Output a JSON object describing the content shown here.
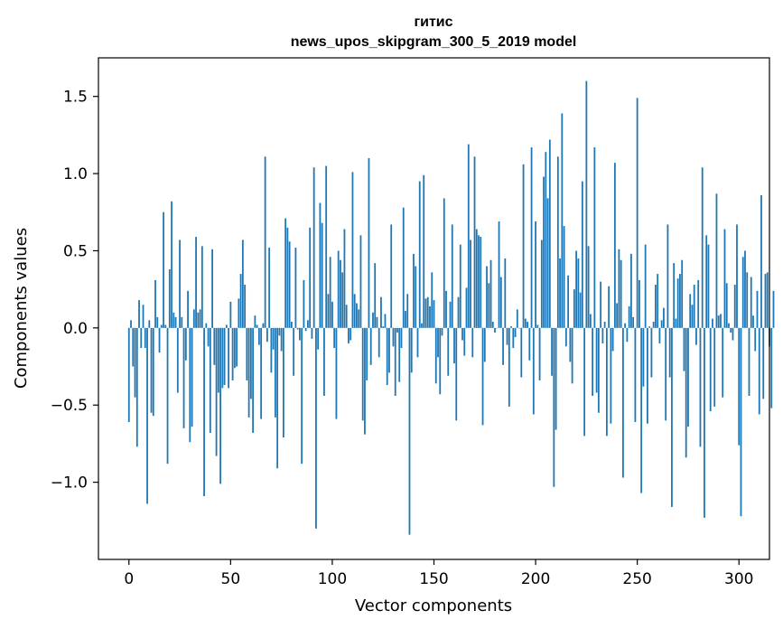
{
  "chart_data": {
    "type": "bar",
    "title": "гитис",
    "subtitle": "news_upos_skipgram_300_5_2019 model",
    "xlabel": "Vector components",
    "ylabel": "Components values",
    "xlim": [
      -15,
      315
    ],
    "ylim": [
      -1.5,
      1.75
    ],
    "xticks": [
      0,
      50,
      100,
      150,
      200,
      250,
      300
    ],
    "yticks": [
      -1.0,
      -0.5,
      0.0,
      0.5,
      1.0,
      1.5
    ],
    "xtick_labels": [
      "0",
      "50",
      "100",
      "150",
      "200",
      "250",
      "300"
    ],
    "ytick_labels": [
      "−1.0",
      "−0.5",
      "0.0",
      "0.5",
      "1.0",
      "1.5"
    ],
    "grid": false,
    "bar_color": "#1f77b4",
    "values": [
      -0.61,
      0.05,
      -0.25,
      -0.45,
      -0.77,
      0.18,
      -0.13,
      0.15,
      -0.13,
      -1.14,
      0.05,
      -0.55,
      -0.57,
      0.31,
      0.07,
      -0.16,
      0.02,
      0.75,
      0.02,
      -0.88,
      0.38,
      0.82,
      0.1,
      0.07,
      -0.42,
      0.57,
      0.07,
      -0.65,
      -0.21,
      0.24,
      -0.74,
      -0.64,
      0.12,
      0.59,
      0.1,
      0.12,
      0.53,
      -1.09,
      0.03,
      -0.12,
      -0.68,
      0.51,
      -0.24,
      -0.83,
      -0.42,
      -1.01,
      -0.39,
      -0.37,
      0.02,
      -0.39,
      0.17,
      -0.34,
      -0.26,
      -0.25,
      0.19,
      0.35,
      0.57,
      0.28,
      -0.34,
      -0.58,
      -0.46,
      -0.68,
      0.08,
      0.02,
      -0.11,
      -0.59,
      0.03,
      1.11,
      -0.09,
      0.52,
      -0.29,
      -0.14,
      -0.58,
      -0.91,
      -0.05,
      -0.15,
      -0.71,
      0.71,
      0.65,
      0.56,
      0.04,
      -0.31,
      0.52,
      -0.01,
      -0.08,
      -0.88,
      0.31,
      -0.02,
      0.05,
      0.65,
      -0.07,
      1.04,
      -1.3,
      -0.14,
      0.81,
      0.68,
      -0.44,
      1.05,
      0.22,
      0.46,
      0.17,
      -0.13,
      -0.59,
      0.5,
      0.44,
      0.36,
      0.64,
      0.15,
      -0.1,
      -0.08,
      1.01,
      0.22,
      0.16,
      0.12,
      0.6,
      -0.6,
      -0.69,
      -0.34,
      1.1,
      -0.24,
      0.1,
      0.42,
      0.07,
      -0.19,
      0.2,
      0.01,
      0.09,
      -0.37,
      -0.29,
      0.67,
      -0.12,
      -0.44,
      -0.03,
      -0.35,
      -0.13,
      0.78,
      0.11,
      0.22,
      -1.34,
      -0.29,
      0.48,
      0.4,
      -0.19,
      0.95,
      0.03,
      0.99,
      0.19,
      0.2,
      0.14,
      0.36,
      0.18,
      -0.36,
      -0.19,
      -0.43,
      -0.05,
      0.84,
      0.24,
      -0.31,
      0.17,
      0.67,
      -0.23,
      -0.6,
      0.2,
      0.54,
      -0.08,
      -0.18,
      0.26,
      1.19,
      0.57,
      -0.19,
      1.11,
      0.64,
      0.6,
      0.59,
      -0.63,
      -0.22,
      0.4,
      0.29,
      0.44,
      0.04,
      -0.03,
      0.0,
      0.69,
      0.33,
      -0.24,
      0.45,
      -0.11,
      -0.51,
      0.01,
      -0.13,
      -0.06,
      0.12,
      0.0,
      -0.32,
      1.06,
      0.06,
      0.04,
      -0.21,
      1.17,
      -0.56,
      0.69,
      0.02,
      -0.34,
      0.57,
      0.98,
      1.14,
      0.84,
      1.22,
      -0.31,
      -1.03,
      -0.66,
      1.11,
      0.45,
      1.39,
      0.66,
      -0.12,
      0.34,
      -0.22,
      -0.36,
      0.25,
      0.5,
      0.45,
      0.23,
      0.95,
      -0.7,
      1.6,
      0.53,
      0.09,
      -0.44,
      1.17,
      -0.42,
      -0.55,
      0.3,
      -0.1,
      0.04,
      -0.7,
      0.27,
      -0.62,
      -0.15,
      1.07,
      0.16,
      0.51,
      0.44,
      -0.97,
      0.03,
      -0.09,
      0.14,
      0.48,
      0.07,
      -0.61,
      1.49,
      0.31,
      -1.07,
      -0.38,
      0.54,
      -0.62,
      0.01,
      -0.32,
      0.04,
      0.28,
      0.35,
      -0.1,
      0.05,
      0.13,
      -0.6,
      0.67,
      -0.32,
      -1.16,
      0.42,
      0.06,
      0.32,
      0.35,
      0.44,
      -0.28,
      -0.84,
      -0.64,
      0.22,
      0.15,
      0.28,
      -0.11,
      0.31,
      -0.77,
      1.04,
      -1.23,
      0.6,
      0.54,
      -0.54,
      0.06,
      -0.51,
      0.87,
      0.08,
      0.09,
      -0.45,
      0.64,
      0.29,
      0.03,
      -0.03,
      -0.08,
      0.28,
      0.67,
      -0.76,
      -1.22,
      0.46,
      0.5,
      0.36,
      -0.44,
      0.33,
      0.08,
      -0.15,
      0.24,
      -0.56,
      0.86,
      -0.46,
      0.35,
      0.36,
      -0.12,
      -0.52,
      0.24
    ]
  }
}
